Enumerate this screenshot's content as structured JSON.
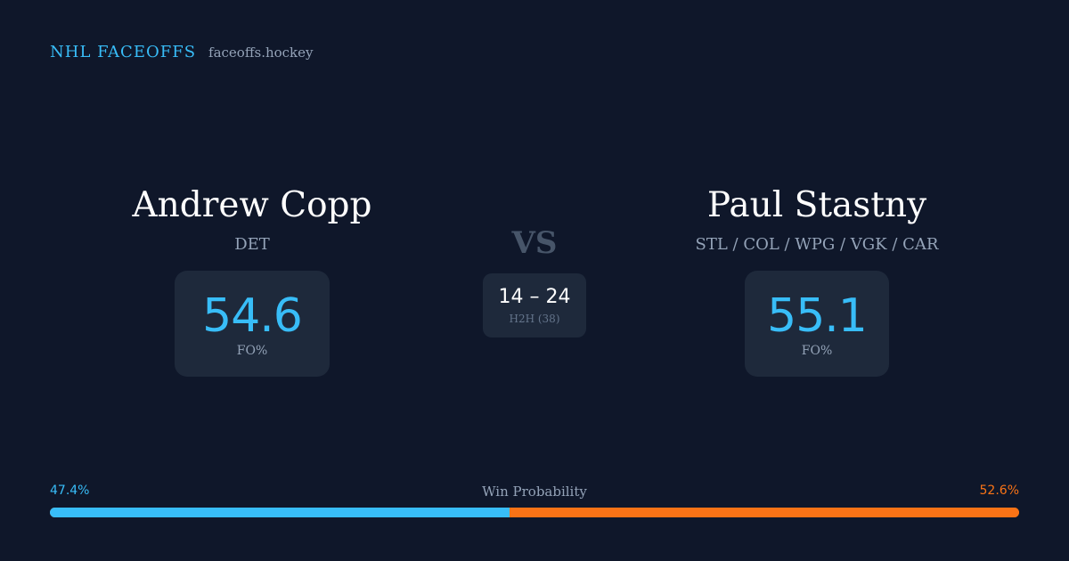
{
  "brand": {
    "title": "NHL FACEOFFS",
    "domain": "faceoffs.hockey"
  },
  "player_left": {
    "name": "Andrew Copp",
    "team": "DET",
    "fo_value": "54.6",
    "fo_label": "FO%"
  },
  "player_right": {
    "name": "Paul Stastny",
    "team": "STL / COL / WPG / VGK / CAR",
    "fo_value": "55.1",
    "fo_label": "FO%"
  },
  "versus": {
    "label": "VS",
    "h2h_score": "14 – 24",
    "h2h_label": "H2H (38)"
  },
  "win_probability": {
    "label": "Win Probability",
    "left_text": "47.4%",
    "right_text": "52.6%",
    "left_fraction": 0.474,
    "right_fraction": 0.526,
    "left_color": "#38bdf8",
    "right_color": "#f97316"
  },
  "colors": {
    "background": "#0f172a",
    "card": "#1e293b",
    "accent": "#38bdf8",
    "muted": "#94a3b8"
  }
}
